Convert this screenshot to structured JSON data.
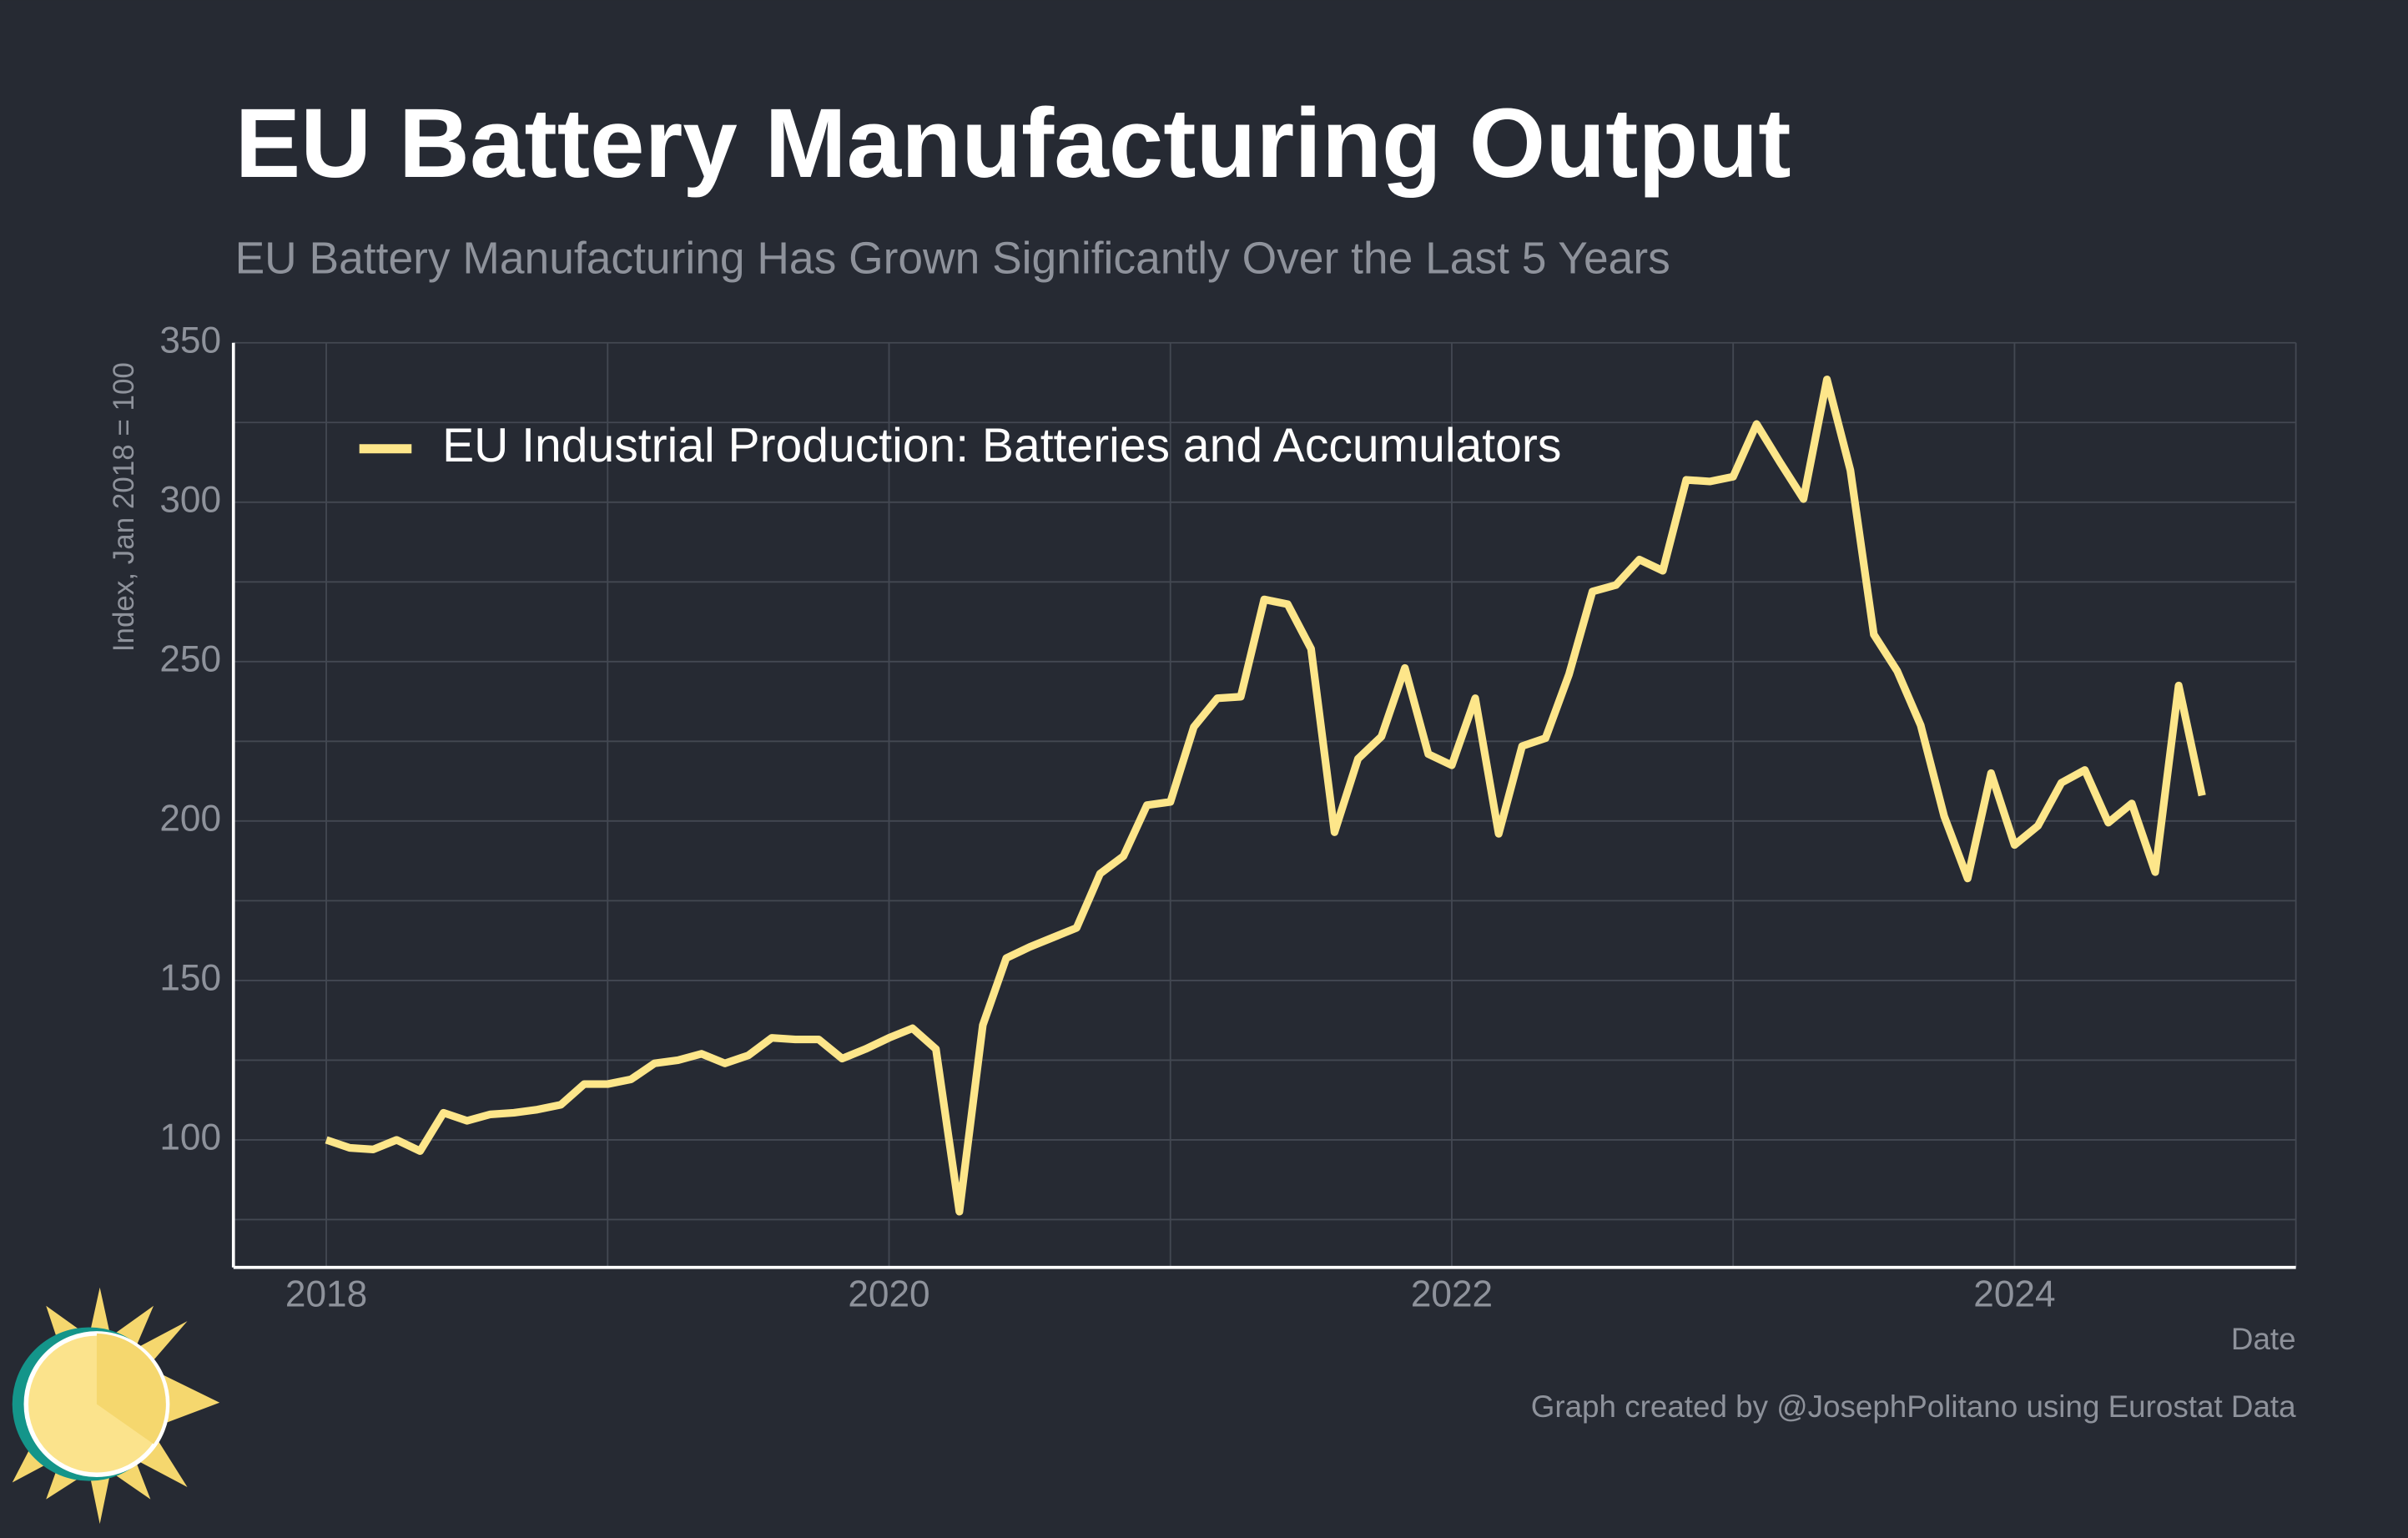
{
  "chart_data": {
    "type": "line",
    "title": "EU Battery Manufacturing Output",
    "subtitle": "EU Battery Manufacturing Has Grown Significantly Over the Last 5 Years",
    "y_label": "Index, Jan 2018 = 100",
    "x_label": "Date",
    "credit": "Graph created by @JosephPolitano using Eurostat Data",
    "x": [
      "2018-01",
      "2018-02",
      "2018-03",
      "2018-04",
      "2018-05",
      "2018-06",
      "2018-07",
      "2018-08",
      "2018-09",
      "2018-10",
      "2018-11",
      "2018-12",
      "2019-01",
      "2019-02",
      "2019-03",
      "2019-04",
      "2019-05",
      "2019-06",
      "2019-07",
      "2019-08",
      "2019-09",
      "2019-10",
      "2019-11",
      "2019-12",
      "2020-01",
      "2020-02",
      "2020-03",
      "2020-04",
      "2020-05",
      "2020-06",
      "2020-07",
      "2020-08",
      "2020-09",
      "2020-10",
      "2020-11",
      "2020-12",
      "2021-01",
      "2021-02",
      "2021-03",
      "2021-04",
      "2021-05",
      "2021-06",
      "2021-07",
      "2021-08",
      "2021-09",
      "2021-10",
      "2021-11",
      "2021-12",
      "2022-01",
      "2022-02",
      "2022-03",
      "2022-04",
      "2022-05",
      "2022-06",
      "2022-07",
      "2022-08",
      "2022-09",
      "2022-10",
      "2022-11",
      "2022-12",
      "2023-01",
      "2023-02",
      "2023-03",
      "2023-04",
      "2023-05",
      "2023-06",
      "2023-07",
      "2023-08",
      "2023-09",
      "2023-10",
      "2023-11",
      "2023-12",
      "2024-01",
      "2024-02",
      "2024-03",
      "2024-04",
      "2024-05",
      "2024-06",
      "2024-07",
      "2024-08",
      "2024-09"
    ],
    "series": [
      {
        "name": "EU Industrial Production: Batteries and Accumulators",
        "color": "#fde68a",
        "values": [
          100,
          97.5,
          97,
          100,
          96.5,
          108.5,
          106,
          108,
          108.5,
          109.5,
          111,
          117.5,
          117.5,
          119,
          124,
          125,
          127,
          124,
          126.5,
          132,
          131.5,
          131.5,
          125.5,
          128.5,
          132,
          135,
          128.5,
          77.5,
          136,
          157,
          160.5,
          163.5,
          166.5,
          183.5,
          189,
          205,
          206,
          229.5,
          238.5,
          239,
          269.5,
          268,
          254,
          196.5,
          219.5,
          226.5,
          248,
          221,
          217.5,
          238.5,
          196,
          223.5,
          226,
          246,
          272,
          274,
          282,
          278.5,
          307,
          306.5,
          308,
          324.5,
          312.5,
          301,
          338.5,
          310,
          258.5,
          247,
          230,
          201.5,
          182,
          215,
          192.5,
          198.5,
          212,
          216,
          199.5,
          205.5,
          184,
          242.5,
          208
        ]
      }
    ],
    "xlim": [
      2017.67,
      2025
    ],
    "xticks": [
      2018,
      2020,
      2022,
      2024
    ],
    "minor_xticks": [
      2019,
      2021,
      2023,
      2025
    ],
    "ylim": [
      60,
      350
    ],
    "yticks": [
      100,
      150,
      200,
      250,
      300,
      350
    ],
    "minor_yticks": [
      75,
      125,
      175,
      225,
      275,
      325
    ],
    "grid": true,
    "legend": "upper left"
  }
}
